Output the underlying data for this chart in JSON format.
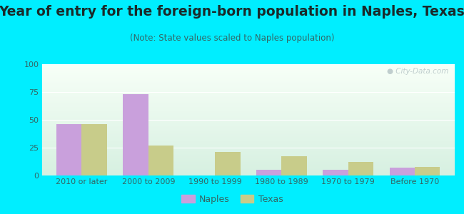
{
  "title": "Year of entry for the foreign-born population in Naples, Texas",
  "subtitle": "(Note: State values scaled to Naples population)",
  "categories": [
    "2010 or later",
    "2000 to 2009",
    "1990 to 1999",
    "1980 to 1989",
    "1970 to 1979",
    "Before 1970"
  ],
  "naples_values": [
    46,
    73,
    0,
    5,
    5,
    7
  ],
  "texas_values": [
    46,
    27,
    21,
    17,
    12,
    8
  ],
  "naples_color": "#c9a0dc",
  "texas_color": "#c8cc8a",
  "background_outer": "#00eeff",
  "ylim": [
    0,
    100
  ],
  "yticks": [
    0,
    25,
    50,
    75,
    100
  ],
  "bar_width": 0.38,
  "title_fontsize": 13.5,
  "subtitle_fontsize": 8.5,
  "tick_fontsize": 8,
  "legend_fontsize": 9,
  "title_color": "#1a2a2a",
  "subtitle_color": "#336666",
  "tick_color": "#336666",
  "watermark_color": "#c0cece",
  "grid_color": "#ffffff"
}
